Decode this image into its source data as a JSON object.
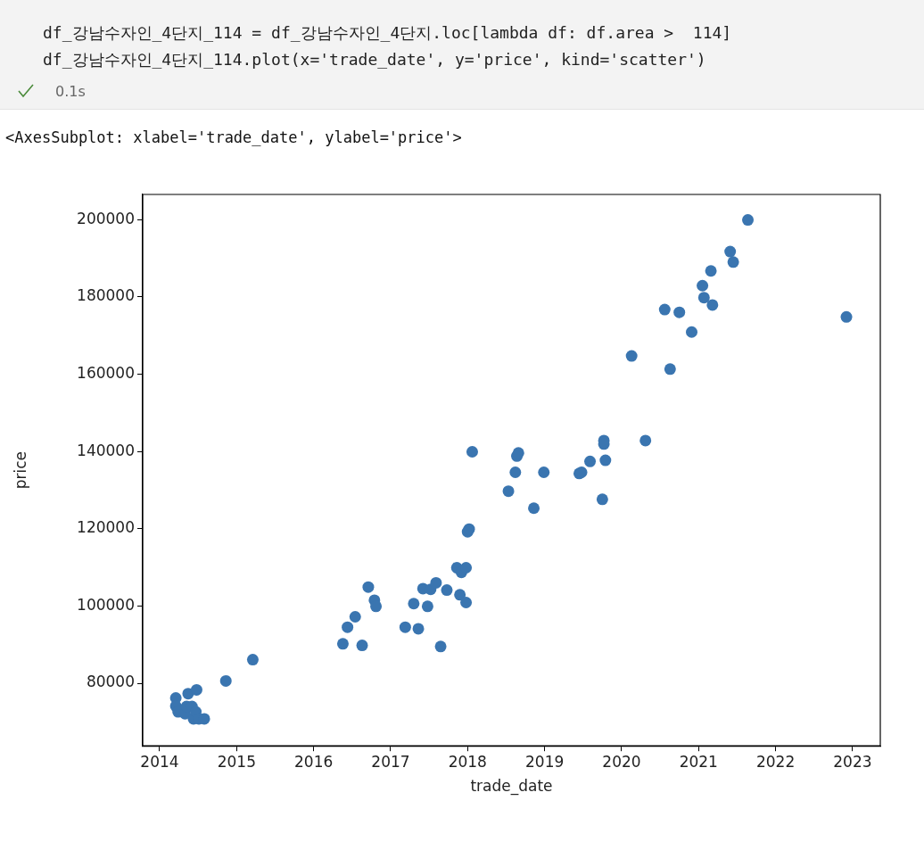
{
  "chart_data": {
    "type": "scatter",
    "xlabel": "trade_date",
    "ylabel": "price",
    "annotations": [
      "df_강남수자인_4단지_114 = df_강남수자인_4단지.loc[lambda df: df.area >  114]",
      "df_강남수자인_4단지_114.plot(x='trade_date', y='price', kind='scatter')",
      "0.1s",
      "<AxesSubplot: xlabel='trade_date', ylabel='price'>"
    ],
    "xlim": [
      2013.78,
      2023.36
    ],
    "xticks": [
      2014,
      2015,
      2016,
      2017,
      2018,
      2019,
      2020,
      2021,
      2022,
      2023
    ],
    "ylim": [
      63800,
      206500
    ],
    "yticks": [
      80000,
      100000,
      120000,
      140000,
      160000,
      180000,
      200000
    ],
    "grid": false,
    "legend": false,
    "marker": "circle",
    "series": [
      {
        "color": "#3a75b0",
        "x": [
          2014.21,
          2014.21,
          2014.24,
          2014.33,
          2014.35,
          2014.37,
          2014.42,
          2014.44,
          2014.47,
          2014.48,
          2014.51,
          2014.58,
          2014.86,
          2015.21,
          2016.38,
          2016.44,
          2016.54,
          2016.63,
          2016.71,
          2016.79,
          2016.81,
          2017.19,
          2017.3,
          2017.36,
          2017.42,
          2017.48,
          2017.52,
          2017.59,
          2017.65,
          2017.73,
          2017.86,
          2017.9,
          2017.92,
          2017.98,
          2017.98,
          2018.0,
          2018.02,
          2018.06,
          2018.53,
          2018.62,
          2018.64,
          2018.66,
          2018.86,
          2018.99,
          2019.45,
          2019.48,
          2019.59,
          2019.75,
          2019.77,
          2019.77,
          2019.79,
          2020.13,
          2020.31,
          2020.56,
          2020.63,
          2020.75,
          2020.91,
          2021.05,
          2021.07,
          2021.16,
          2021.18,
          2021.41,
          2021.45,
          2021.64,
          2022.92
        ],
        "values": [
          76200,
          74100,
          72600,
          72100,
          74000,
          77300,
          74000,
          70800,
          72600,
          78300,
          70800,
          70800,
          80600,
          86100,
          90200,
          94500,
          97200,
          89800,
          104900,
          101500,
          99900,
          94500,
          100600,
          94100,
          104500,
          99900,
          104300,
          106000,
          89500,
          104100,
          109900,
          102900,
          108700,
          109900,
          100900,
          119200,
          119900,
          139900,
          129700,
          134600,
          138800,
          139600,
          125300,
          134600,
          134300,
          134600,
          137400,
          127600,
          142800,
          141900,
          137700,
          164700,
          142800,
          176700,
          161300,
          176000,
          170900,
          182900,
          179800,
          186700,
          177900,
          191700,
          189000,
          199900,
          174800
        ]
      }
    ]
  }
}
